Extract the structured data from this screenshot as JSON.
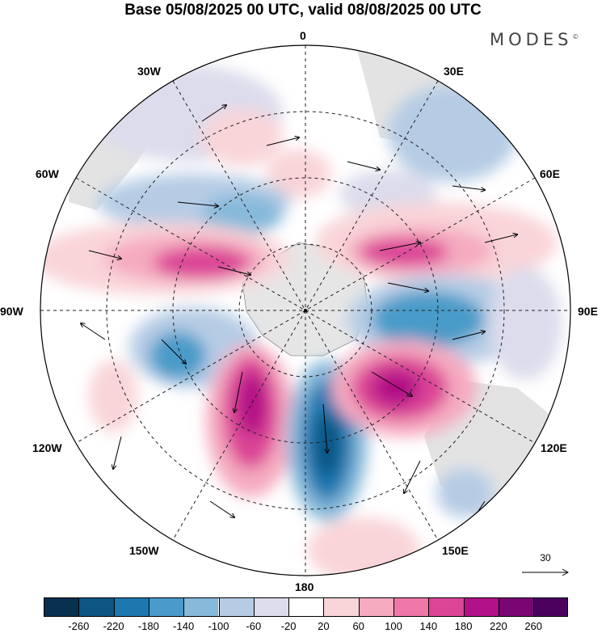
{
  "title": "Base 05/08/2025 00 UTC, valid 08/08/2025 00 UTC",
  "brand": "MODES",
  "brand_mark": "©",
  "longitude_labels": [
    "0",
    "30E",
    "60E",
    "90E",
    "120E",
    "150E",
    "180",
    "150W",
    "120W",
    "90W",
    "60W",
    "30W"
  ],
  "reference_vector": {
    "label": "30"
  },
  "colorbar": {
    "colors": [
      "#08304f",
      "#0d5583",
      "#1d78b0",
      "#4a9bc9",
      "#86b9da",
      "#b6cce5",
      "#dcdcec",
      "#ffffff",
      "#f9d4d8",
      "#f5aac0",
      "#ef78a8",
      "#dc4496",
      "#b31187",
      "#7a0673",
      "#4b005e"
    ],
    "tick_labels": [
      "-260",
      "-220",
      "-180",
      "-140",
      "-100",
      "-60",
      "-20",
      "20",
      "60",
      "100",
      "140",
      "180",
      "220",
      "260"
    ]
  },
  "colors": {
    "land": "#e6e6e6",
    "grid": "#222222"
  }
}
